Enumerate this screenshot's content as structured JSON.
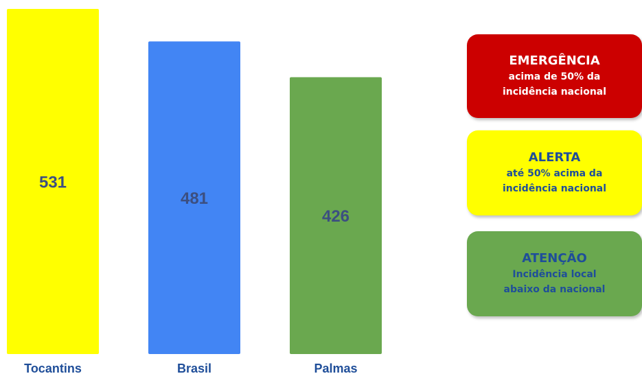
{
  "chart_data": {
    "type": "bar",
    "categories": [
      "Tocantins",
      "Brasil",
      "Palmas"
    ],
    "values": [
      531,
      481,
      426
    ],
    "value_labels": [
      "531",
      "481",
      "426"
    ],
    "ylim": [
      0,
      531
    ],
    "grid": false,
    "title": "",
    "xlabel": "",
    "ylabel": ""
  },
  "style": {
    "bar_colors": [
      "#ffff00",
      "#4285f4",
      "#6aa84f"
    ],
    "value_label_color": "#3c4f80",
    "category_label_color": "#1f4e99"
  },
  "legend": {
    "emergencia": {
      "title": "EMERGÊNCIA",
      "line1": "acima de 50% da",
      "line2": "incidência nacional",
      "bg_color": "#cc0000",
      "text_color": "#ffffff"
    },
    "alerta": {
      "title": "ALERTA",
      "line1": "até 50% acima da",
      "line2": "incidência nacional",
      "bg_color": "#ffff00",
      "text_color": "#1f4e99"
    },
    "atencao": {
      "title": "ATENÇÃO",
      "line1": "Incidência local",
      "line2": "abaixo da nacional",
      "bg_color": "#6aa84f",
      "text_color": "#1f4e99"
    }
  }
}
